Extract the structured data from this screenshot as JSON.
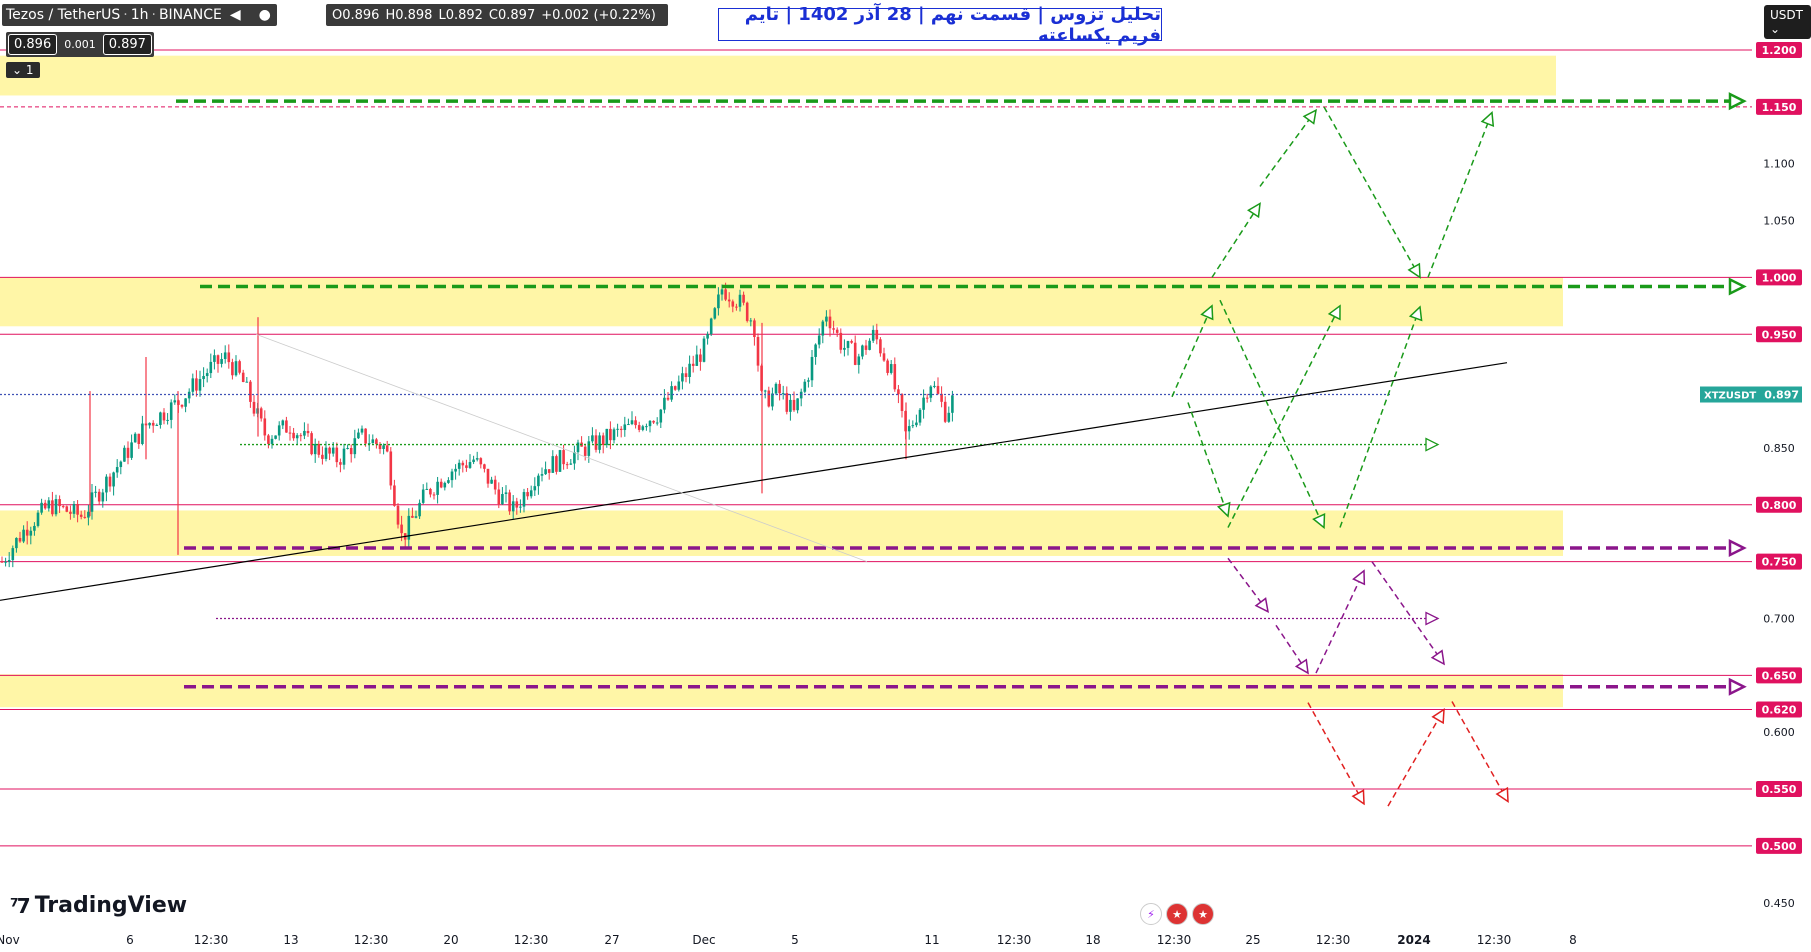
{
  "header": {
    "symbol": "Tezos / TetherUS",
    "interval": "1h",
    "exchange": "BINANCE",
    "ohlc": {
      "open": "O0.896",
      "high": "H0.898",
      "low": "L0.892",
      "close": "C0.897",
      "change": "+0.002 (+0.22%)"
    },
    "bid": "0.896",
    "spread": "0.001",
    "ask": "0.897",
    "collapse_label": "1",
    "currency": "USDT"
  },
  "annotation_title": "تحلیل تزوس | قسمت نهم | 28 آذر 1402 | تایم فریم یکساعته",
  "branding": {
    "logo_text": "TradingView"
  },
  "colors": {
    "zone_fill": "#fff59d",
    "level_line": "#e0115f",
    "green_arrow": "#1a9a1a",
    "purple_arrow": "#8b168b",
    "red_arrow": "#e02020",
    "last_price": "#26a69a"
  },
  "icons": [
    "flash-icon",
    "us-flag-icon",
    "us-flag-icon"
  ],
  "chart_data": {
    "type": "candlestick",
    "symbol": "XTZUSDT",
    "last_price": 0.897,
    "ylim": [
      0.44,
      1.22
    ],
    "x_ticks": [
      "Nov",
      "6",
      "12:30",
      "13",
      "12:30",
      "20",
      "12:30",
      "27",
      "Dec",
      "5",
      "11",
      "12:30",
      "18",
      "12:30",
      "25",
      "12:30",
      "2024",
      "12:30",
      "8"
    ],
    "y_ticks": [
      {
        "value": 1.1,
        "label": "1.100"
      },
      {
        "value": 1.05,
        "label": "1.050"
      },
      {
        "value": 0.85,
        "label": "0.850"
      },
      {
        "value": 0.7,
        "label": "0.700"
      },
      {
        "value": 0.6,
        "label": "0.600"
      },
      {
        "value": 0.45,
        "label": "0.450"
      }
    ],
    "levels": [
      {
        "value": 1.2,
        "label": "1.200"
      },
      {
        "value": 1.15,
        "label": "1.150"
      },
      {
        "value": 1.0,
        "label": "1.000"
      },
      {
        "value": 0.95,
        "label": "0.950"
      },
      {
        "value": 0.8,
        "label": "0.800"
      },
      {
        "value": 0.75,
        "label": "0.750"
      },
      {
        "value": 0.65,
        "label": "0.650"
      },
      {
        "value": 0.62,
        "label": "0.620"
      },
      {
        "value": 0.55,
        "label": "0.550"
      },
      {
        "value": 0.5,
        "label": "0.500"
      }
    ],
    "zones": [
      {
        "from": 1.16,
        "to": 1.195
      },
      {
        "from": 0.957,
        "to": 1.0
      },
      {
        "from": 0.755,
        "to": 0.795
      },
      {
        "from": 0.622,
        "to": 0.651
      }
    ],
    "price_path": [
      {
        "t": 0,
        "p": 0.75
      },
      {
        "t": 3,
        "p": 0.78
      },
      {
        "t": 6,
        "p": 0.8
      },
      {
        "t": 10,
        "p": 0.79
      },
      {
        "t": 14,
        "p": 0.83
      },
      {
        "t": 18,
        "p": 0.87
      },
      {
        "t": 22,
        "p": 0.89
      },
      {
        "t": 26,
        "p": 0.92
      },
      {
        "t": 28,
        "p": 0.93
      },
      {
        "t": 30,
        "p": 0.91
      },
      {
        "t": 33,
        "p": 0.86
      },
      {
        "t": 36,
        "p": 0.87
      },
      {
        "t": 39,
        "p": 0.85
      },
      {
        "t": 42,
        "p": 0.84
      },
      {
        "t": 45,
        "p": 0.86
      },
      {
        "t": 48,
        "p": 0.85
      },
      {
        "t": 50,
        "p": 0.77
      },
      {
        "t": 53,
        "p": 0.81
      },
      {
        "t": 56,
        "p": 0.83
      },
      {
        "t": 59,
        "p": 0.84
      },
      {
        "t": 62,
        "p": 0.81
      },
      {
        "t": 64,
        "p": 0.795
      },
      {
        "t": 67,
        "p": 0.83
      },
      {
        "t": 70,
        "p": 0.84
      },
      {
        "t": 73,
        "p": 0.85
      },
      {
        "t": 76,
        "p": 0.86
      },
      {
        "t": 79,
        "p": 0.87
      },
      {
        "t": 82,
        "p": 0.88
      },
      {
        "t": 85,
        "p": 0.91
      },
      {
        "t": 88,
        "p": 0.94
      },
      {
        "t": 90,
        "p": 0.99
      },
      {
        "t": 92,
        "p": 0.98
      },
      {
        "t": 94,
        "p": 0.96
      },
      {
        "t": 95,
        "p": 0.89
      },
      {
        "t": 97,
        "p": 0.9
      },
      {
        "t": 99,
        "p": 0.88
      },
      {
        "t": 101,
        "p": 0.92
      },
      {
        "t": 103,
        "p": 0.97
      },
      {
        "t": 105,
        "p": 0.94
      },
      {
        "t": 107,
        "p": 0.93
      },
      {
        "t": 109,
        "p": 0.95
      },
      {
        "t": 111,
        "p": 0.92
      },
      {
        "t": 113,
        "p": 0.86
      },
      {
        "t": 115,
        "p": 0.89
      },
      {
        "t": 116,
        "p": 0.91
      },
      {
        "t": 118,
        "p": 0.88
      },
      {
        "t": 119,
        "p": 0.895
      }
    ],
    "wick_spikes": [
      {
        "t": 11,
        "high": 0.9,
        "low": 0.79
      },
      {
        "t": 18,
        "high": 0.93,
        "low": 0.84
      },
      {
        "t": 22,
        "high": 0.9,
        "low": 0.756
      },
      {
        "t": 32,
        "high": 0.965,
        "low": 0.86
      },
      {
        "t": 95,
        "high": 0.96,
        "low": 0.81
      },
      {
        "t": 113,
        "high": 0.89,
        "low": 0.84
      }
    ],
    "trendlines": [
      {
        "from": {
          "t": 0,
          "p": 0.716
        },
        "to": {
          "t": 154,
          "p": 0.925
        },
        "style": "solid",
        "color": "#000000"
      },
      {
        "from": {
          "t": 32,
          "p": 0.95
        },
        "to": {
          "t": 74,
          "p": 0.75
        },
        "style": "thin",
        "color": "#cccccc"
      }
    ],
    "dotted_levels": [
      {
        "value": 0.897,
        "from_t": 0,
        "to_t": 170,
        "color": "#3f51b5"
      },
      {
        "value": 0.853,
        "from_t": 30,
        "to_t": 176,
        "color": "#1a9a1a",
        "arrow": true
      },
      {
        "value": 0.7,
        "from_t": 27,
        "to_t": 176,
        "color": "#8b168b",
        "arrow": true
      }
    ],
    "dashed_levels": [
      {
        "value": 1.155,
        "from_t": 22,
        "to_t": 177,
        "color": "#1a9a1a"
      },
      {
        "value": 0.992,
        "from_t": 25,
        "to_t": 177,
        "color": "#1a9a1a"
      },
      {
        "value": 0.762,
        "from_t": 23,
        "to_t": 177,
        "color": "#8b168b"
      },
      {
        "value": 0.64,
        "from_t": 23,
        "to_t": 177,
        "color": "#8b168b"
      }
    ],
    "scenario_arrows": [
      {
        "color": "#1a9a1a",
        "points": [
          [
            119,
            0.895
          ],
          [
            124,
            0.975
          ]
        ]
      },
      {
        "color": "#1a9a1a",
        "points": [
          [
            124,
            1.0
          ],
          [
            130,
            1.065
          ]
        ]
      },
      {
        "color": "#1a9a1a",
        "points": [
          [
            130,
            1.08
          ],
          [
            137,
            1.147
          ]
        ]
      },
      {
        "color": "#1a9a1a",
        "points": [
          [
            138,
            1.15
          ],
          [
            150,
            1.0
          ]
        ]
      },
      {
        "color": "#1a9a1a",
        "points": [
          [
            151,
            1.0
          ],
          [
            159,
            1.145
          ]
        ]
      },
      {
        "color": "#1a9a1a",
        "points": [
          [
            121,
            0.89
          ],
          [
            126,
            0.79
          ]
        ]
      },
      {
        "color": "#1a9a1a",
        "points": [
          [
            126,
            0.78
          ],
          [
            140,
            0.975
          ]
        ]
      },
      {
        "color": "#1a9a1a",
        "points": [
          [
            125,
            0.98
          ],
          [
            138,
            0.78
          ]
        ]
      },
      {
        "color": "#1a9a1a",
        "points": [
          [
            140,
            0.78
          ],
          [
            150,
            0.974
          ]
        ]
      },
      {
        "color": "#8b168b",
        "points": [
          [
            126,
            0.753
          ],
          [
            131,
            0.706
          ]
        ]
      },
      {
        "color": "#8b168b",
        "points": [
          [
            132,
            0.694
          ],
          [
            136,
            0.652
          ]
        ]
      },
      {
        "color": "#8b168b",
        "points": [
          [
            137,
            0.652
          ],
          [
            143,
            0.742
          ]
        ]
      },
      {
        "color": "#8b168b",
        "points": [
          [
            144,
            0.75
          ],
          [
            153,
            0.66
          ]
        ]
      },
      {
        "color": "#e02020",
        "points": [
          [
            136,
            0.626
          ],
          [
            143,
            0.537
          ]
        ]
      },
      {
        "color": "#e02020",
        "points": [
          [
            146,
            0.535
          ],
          [
            153,
            0.62
          ]
        ]
      },
      {
        "color": "#e02020",
        "points": [
          [
            154,
            0.627
          ],
          [
            161,
            0.539
          ]
        ]
      }
    ]
  }
}
